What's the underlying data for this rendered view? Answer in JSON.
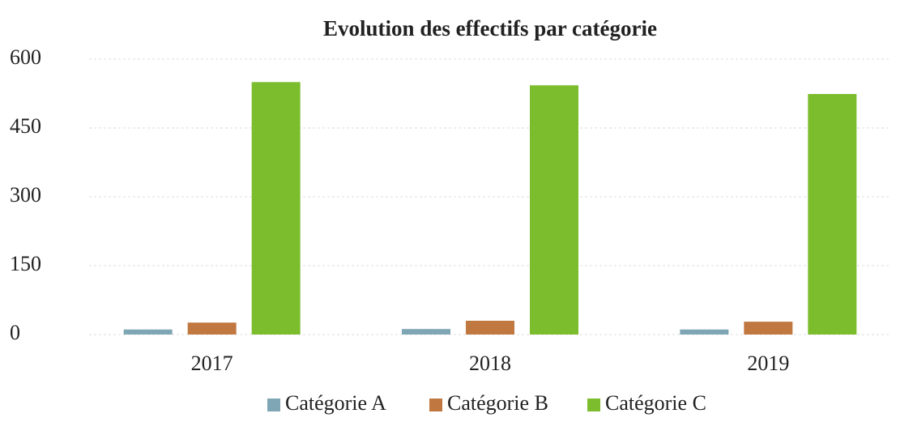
{
  "chart_data": {
    "type": "bar",
    "title": "Evolution des effectifs par catégorie",
    "categories": [
      "2017",
      "2018",
      "2019"
    ],
    "series": [
      {
        "name": "Catégorie A",
        "color": "#7fa6b5",
        "values": [
          11,
          12,
          11
        ]
      },
      {
        "name": "Catégorie B",
        "color": "#c07840",
        "values": [
          26,
          30,
          28
        ]
      },
      {
        "name": "Catégorie C",
        "color": "#7cbd2e",
        "values": [
          550,
          543,
          524
        ]
      }
    ],
    "ylim": [
      0,
      600
    ],
    "yticks": [
      0,
      150,
      300,
      450,
      600
    ],
    "grid": true,
    "legend": "bottom"
  }
}
